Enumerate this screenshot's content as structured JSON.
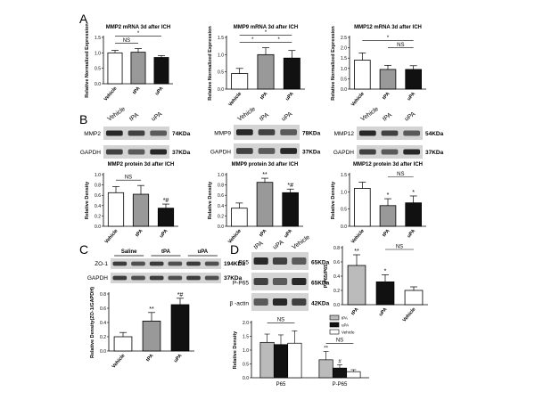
{
  "panel_labels": [
    "A",
    "B",
    "C",
    "D"
  ],
  "blots": {
    "B_mmp2": {
      "lanes": [
        "Vehicle",
        "tPA",
        "uPA"
      ],
      "rows": [
        {
          "name": "MMP2",
          "size": "74KDa"
        },
        {
          "name": "GAPDH",
          "size": "37KDa"
        }
      ]
    },
    "B_mmp9": {
      "lanes": [
        "Vehicle",
        "tPA",
        "uPA"
      ],
      "rows": [
        {
          "name": "MMP9",
          "size": "78KDa"
        },
        {
          "name": "GAPDH",
          "size": "37KDa"
        }
      ]
    },
    "B_mmp12": {
      "lanes": [
        "Vehicle",
        "tPA",
        "uPA"
      ],
      "rows": [
        {
          "name": "MMP12",
          "size": "54KDa"
        },
        {
          "name": "GAPDH",
          "size": "37KDa"
        }
      ]
    },
    "C_zo1": {
      "lanes": [
        "Saline",
        "tPA",
        "uPA"
      ],
      "rows": [
        {
          "name": "ZO-1",
          "size": "194KDa"
        },
        {
          "name": "GAPDH",
          "size": "37KDa"
        }
      ]
    },
    "D_p65": {
      "lanes": [
        "tPA",
        "uPA",
        "Vehicle"
      ],
      "rows": [
        {
          "name": "P65",
          "size": "65KDa"
        },
        {
          "name": "P-P65",
          "size": "65KDa"
        },
        {
          "name": "β -actin",
          "size": "42KDa"
        }
      ]
    }
  },
  "chart_data": [
    {
      "id": "A1",
      "type": "bar",
      "title": "MMP2 mRNA 3d after ICH",
      "xlabel": "",
      "ylabel": "Relative Normalized Expression",
      "categories": [
        "Vehicle",
        "tPA",
        "uPA"
      ],
      "values": [
        1.0,
        1.02,
        0.85
      ],
      "errors": [
        0.08,
        0.12,
        0.06
      ],
      "colors": [
        "#ffffff",
        "#999999",
        "#111111"
      ],
      "ylim": [
        0,
        1.5
      ],
      "yticks": [
        "0.0",
        "0.5",
        "1.0",
        "1.5"
      ],
      "bar_labels": [
        "",
        "",
        ""
      ],
      "annotations": [
        {
          "text": "NS",
          "from": 0,
          "to": 1
        },
        {
          "text": "*",
          "from": 0,
          "to": 2
        }
      ]
    },
    {
      "id": "A2",
      "type": "bar",
      "title": "MMP9 mRNA 3d after ICH",
      "xlabel": "",
      "ylabel": "Relative Normalized Expression",
      "categories": [
        "Vehicle",
        "tPA",
        "uPA"
      ],
      "values": [
        0.45,
        1.0,
        0.9
      ],
      "errors": [
        0.15,
        0.2,
        0.22
      ],
      "colors": [
        "#ffffff",
        "#999999",
        "#111111"
      ],
      "ylim": [
        0,
        1.5
      ],
      "yticks": [
        "0.0",
        "0.5",
        "1.0",
        "1.5"
      ],
      "bar_labels": [
        "",
        "",
        ""
      ],
      "annotations": [
        {
          "text": "*",
          "from": 0,
          "to": 1
        },
        {
          "text": "*",
          "from": 1,
          "to": 2
        },
        {
          "text": "*",
          "from": 0,
          "to": 2
        }
      ]
    },
    {
      "id": "A3",
      "type": "bar",
      "title": "MMP12 mRNA 3d after ICH",
      "xlabel": "",
      "ylabel": "Relative Normalized Expression",
      "categories": [
        "Vehicle",
        "tPA",
        "uPA"
      ],
      "values": [
        1.4,
        0.95,
        0.95
      ],
      "errors": [
        0.35,
        0.2,
        0.18
      ],
      "colors": [
        "#ffffff",
        "#999999",
        "#111111"
      ],
      "ylim": [
        0,
        2.5
      ],
      "yticks": [
        "0.0",
        "0.5",
        "1.0",
        "1.5",
        "2.0",
        "2.5"
      ],
      "bar_labels": [
        "",
        "",
        ""
      ],
      "annotations": [
        {
          "text": "NS",
          "from": 1,
          "to": 2
        },
        {
          "text": "*",
          "from": 0,
          "to": 2
        }
      ]
    },
    {
      "id": "B1",
      "type": "bar",
      "title": "MMP2 protein 3d after ICH",
      "xlabel": "",
      "ylabel": "Relative Density",
      "categories": [
        "Vehicle",
        "tPA",
        "uPA"
      ],
      "values": [
        0.65,
        0.62,
        0.35
      ],
      "errors": [
        0.12,
        0.17,
        0.08
      ],
      "colors": [
        "#ffffff",
        "#999999",
        "#111111"
      ],
      "ylim": [
        0,
        1.0
      ],
      "yticks": [
        "0.0",
        "0.2",
        "0.4",
        "0.6",
        "0.8",
        "1.0"
      ],
      "bar_labels": [
        "",
        "",
        "*#"
      ],
      "annotations": [
        {
          "text": "NS",
          "from": 0,
          "to": 1
        }
      ]
    },
    {
      "id": "B2",
      "type": "bar",
      "title": "MMP9 protein 3d after ICH",
      "xlabel": "",
      "ylabel": "Relative Density",
      "categories": [
        "Vehicle",
        "tPA",
        "uPA"
      ],
      "values": [
        0.35,
        0.85,
        0.65
      ],
      "errors": [
        0.1,
        0.08,
        0.07
      ],
      "colors": [
        "#ffffff",
        "#999999",
        "#111111"
      ],
      "ylim": [
        0,
        1.0
      ],
      "yticks": [
        "0.0",
        "0.2",
        "0.4",
        "0.6",
        "0.8",
        "1.0"
      ],
      "bar_labels": [
        "",
        "**",
        "*#"
      ],
      "annotations": []
    },
    {
      "id": "B3",
      "type": "bar",
      "title": "MMP12 protein 3d after ICH",
      "xlabel": "",
      "ylabel": "Relative Density",
      "categories": [
        "Vehicle",
        "tPA",
        "uPA"
      ],
      "values": [
        1.1,
        0.6,
        0.68
      ],
      "errors": [
        0.18,
        0.2,
        0.2
      ],
      "colors": [
        "#ffffff",
        "#999999",
        "#111111"
      ],
      "ylim": [
        0,
        1.5
      ],
      "yticks": [
        "0.0",
        "0.5",
        "1.0",
        "1.5"
      ],
      "bar_labels": [
        "",
        "*",
        "*"
      ],
      "annotations": [
        {
          "text": "NS",
          "from": 1,
          "to": 2
        }
      ]
    },
    {
      "id": "C1",
      "type": "bar",
      "title": "",
      "xlabel": "",
      "ylabel": "Relative Density(ZO-1/GAPDH)",
      "categories": [
        "Vehicle",
        "tPA",
        "uPA"
      ],
      "values": [
        0.2,
        0.42,
        0.65
      ],
      "errors": [
        0.06,
        0.12,
        0.09
      ],
      "colors": [
        "#ffffff",
        "#999999",
        "#111111"
      ],
      "ylim": [
        0,
        0.8
      ],
      "yticks": [
        "0.0",
        "0.2",
        "0.4",
        "0.6",
        "0.8"
      ],
      "bar_labels": [
        "",
        "**",
        "*#"
      ],
      "annotations": []
    },
    {
      "id": "D1",
      "type": "bar",
      "title": "",
      "xlabel": "",
      "ylabel": "P-P65/P65",
      "categories": [
        "tPA",
        "uPA",
        "Vehicle"
      ],
      "values": [
        0.55,
        0.32,
        0.2
      ],
      "errors": [
        0.15,
        0.1,
        0.05
      ],
      "colors": [
        "#bbbbbb",
        "#111111",
        "#ffffff"
      ],
      "ylim": [
        0,
        0.8
      ],
      "yticks": [
        "0.0",
        "0.2",
        "0.4",
        "0.6",
        "0.8"
      ],
      "bar_labels": [
        "**",
        "*",
        ""
      ],
      "annotations": [
        {
          "text": "NS",
          "from": 1,
          "to": 2
        }
      ]
    },
    {
      "id": "D2",
      "type": "grouped_bar",
      "title": "",
      "xlabel": "",
      "ylabel": "Relative Density",
      "categories": [
        "P65",
        "P-P65"
      ],
      "series": [
        {
          "name": "tPA",
          "color": "#bbbbbb",
          "values": [
            1.28,
            0.65
          ],
          "errors": [
            0.3,
            0.3
          ],
          "labels": [
            "",
            "**"
          ]
        },
        {
          "name": "uPA",
          "color": "#111111",
          "values": [
            1.2,
            0.35
          ],
          "errors": [
            0.35,
            0.12
          ],
          "labels": [
            "",
            "#"
          ]
        },
        {
          "name": "Vehicle",
          "color": "#ffffff",
          "values": [
            1.25,
            0.22
          ],
          "errors": [
            0.45,
            0.07
          ],
          "labels": [
            "",
            ""
          ]
        }
      ],
      "ylim": [
        0,
        2.0
      ],
      "yticks": [
        "0.0",
        "0.5",
        "1.0",
        "1.5",
        "2.0"
      ],
      "legend": "top-right",
      "annotations": [
        {
          "text": "NS",
          "category": 0
        },
        {
          "text": "NS",
          "category": 1
        }
      ]
    }
  ]
}
